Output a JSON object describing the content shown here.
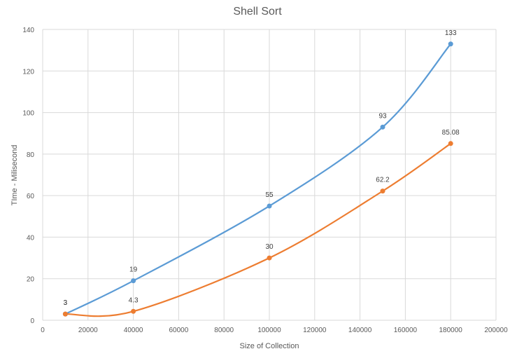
{
  "chart_data": {
    "type": "line",
    "title": "Shell Sort",
    "xlabel": "Size of Collection",
    "ylabel": "TIme - Milisecond",
    "xlim": [
      0,
      200000
    ],
    "ylim": [
      0,
      140
    ],
    "x_ticks": [
      0,
      20000,
      40000,
      60000,
      80000,
      100000,
      120000,
      140000,
      160000,
      180000,
      200000
    ],
    "y_ticks": [
      0,
      20,
      40,
      60,
      80,
      100,
      120,
      140
    ],
    "grid": true,
    "smooth": true,
    "series": [
      {
        "color": "#5b9bd5",
        "x": [
          10000,
          40000,
          100000,
          150000,
          180000
        ],
        "y": [
          3,
          19,
          55,
          93,
          133
        ],
        "labels": [
          "3",
          "19",
          "55",
          "93",
          "133"
        ]
      },
      {
        "color": "#ed7d31",
        "x": [
          10000,
          40000,
          100000,
          150000,
          180000
        ],
        "y": [
          3,
          4.3,
          30,
          62.2,
          85.08
        ],
        "labels": [
          "3",
          "4.3",
          "30",
          "62.2",
          "85.08"
        ]
      }
    ]
  }
}
